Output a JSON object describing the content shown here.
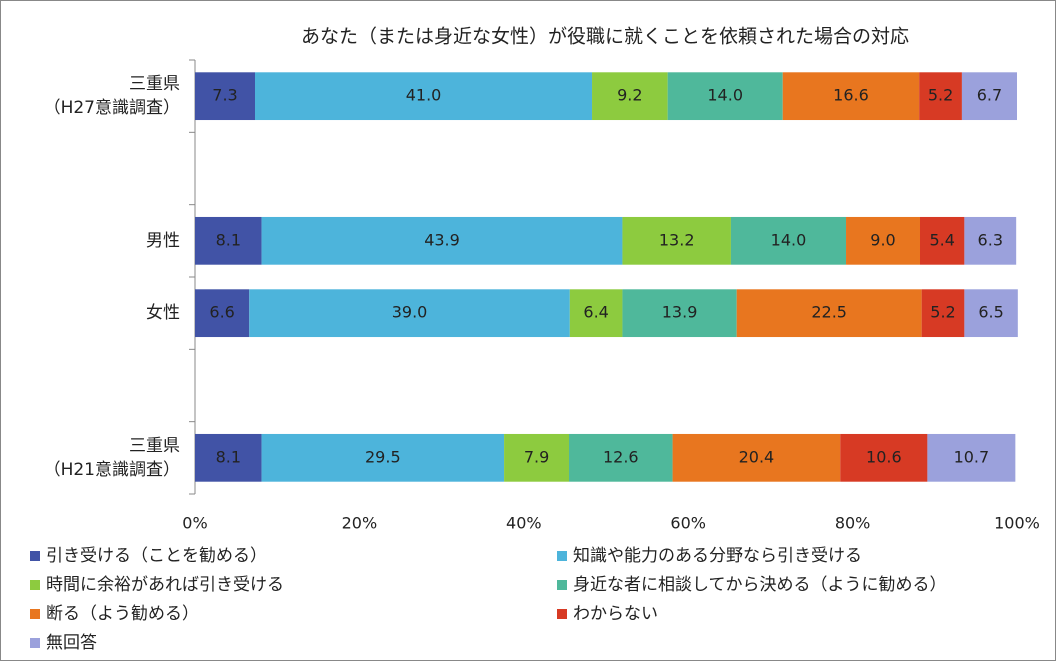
{
  "chart_data": {
    "type": "stacked-bar-horizontal",
    "title": "あなた（または身近な女性）が役職に就くことを依頼された場合の対応",
    "categories": [
      "三重県\n（H27意識調査）",
      null,
      "男性",
      "女性",
      null,
      "三重県\n（H21意識調査）"
    ],
    "series": [
      {
        "name": "引き受ける（ことを勧める）",
        "color": "#4153a6",
        "values": [
          7.3,
          null,
          8.1,
          6.6,
          null,
          8.1
        ],
        "value_labels": [
          "7.3",
          null,
          "8.1",
          "6.6",
          null,
          "8.1"
        ]
      },
      {
        "name": "知識や能力のある分野なら引き受ける",
        "color": "#4db4db",
        "values": [
          41.0,
          null,
          43.9,
          39.0,
          null,
          29.5
        ],
        "value_labels": [
          "41.0",
          null,
          "43.9",
          "39.0",
          null,
          "29.5"
        ]
      },
      {
        "name": "時間に余裕があれば引き受ける",
        "color": "#8dcb3f",
        "values": [
          9.2,
          null,
          13.2,
          6.4,
          null,
          7.9
        ],
        "value_labels": [
          "9.2",
          null,
          "13.2",
          "6.4",
          null,
          "7.9"
        ]
      },
      {
        "name": "身近な者に相談してから決める（ように勧める）",
        "color": "#4fb89b",
        "values": [
          14.0,
          null,
          14.0,
          13.9,
          null,
          12.6
        ],
        "value_labels": [
          "14.0",
          null,
          "14.0",
          "13.9",
          null,
          "12.6"
        ]
      },
      {
        "name": "断る（よう勧める）",
        "color": "#e8761f",
        "values": [
          16.6,
          null,
          9.0,
          22.5,
          null,
          20.4
        ],
        "value_labels": [
          "16.6",
          null,
          "9.0",
          "22.5",
          null,
          "20.4"
        ]
      },
      {
        "name": "わからない",
        "color": "#d73a24",
        "values": [
          5.2,
          null,
          5.4,
          5.2,
          null,
          10.6
        ],
        "value_labels": [
          "5.2",
          null,
          "5.4",
          "5.2",
          null,
          "10.6"
        ]
      },
      {
        "name": "無回答",
        "color": "#9ba1dc",
        "values": [
          6.7,
          null,
          6.3,
          6.5,
          null,
          10.7
        ],
        "value_labels": [
          "6.7",
          null,
          "6.3",
          "6.5",
          null,
          "10.7"
        ]
      }
    ],
    "xlim": [
      0,
      100
    ],
    "xticks": [
      {
        "value": 0,
        "label": "0%"
      },
      {
        "value": 20,
        "label": "20%"
      },
      {
        "value": 40,
        "label": "40%"
      },
      {
        "value": 60,
        "label": "60%"
      },
      {
        "value": 80,
        "label": "80%"
      },
      {
        "value": 100,
        "label": "100%"
      }
    ],
    "legend": "bottom"
  }
}
